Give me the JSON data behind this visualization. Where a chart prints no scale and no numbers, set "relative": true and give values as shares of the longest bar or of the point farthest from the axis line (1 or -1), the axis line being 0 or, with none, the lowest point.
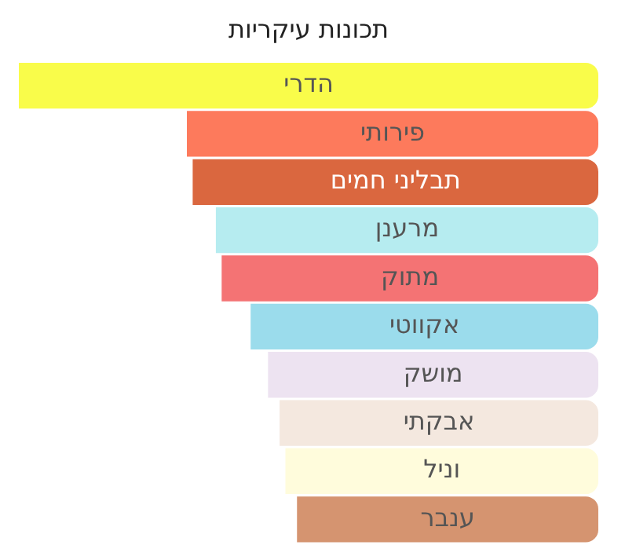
{
  "chart_data": {
    "type": "bar",
    "orientation": "horizontal",
    "relative": true,
    "title": "תכונות עיקריות",
    "categories": [
      "הדרי",
      "פירותי",
      "תבליני חמים",
      "מרענן",
      "מתוק",
      "אקווטי",
      "מושק",
      "אבקתי",
      "וניל",
      "ענבר"
    ],
    "values": [
      1,
      0.71,
      0.7,
      0.66,
      0.65,
      0.6,
      0.57,
      0.55,
      0.54,
      0.52
    ],
    "colors": [
      "#f9fc4a",
      "#fd7a5c",
      "#da673f",
      "#b6ecf0",
      "#f47374",
      "#9bdcec",
      "#ede3f1",
      "#f4e8df",
      "#fffcdc",
      "#d59470"
    ],
    "legend": false
  }
}
